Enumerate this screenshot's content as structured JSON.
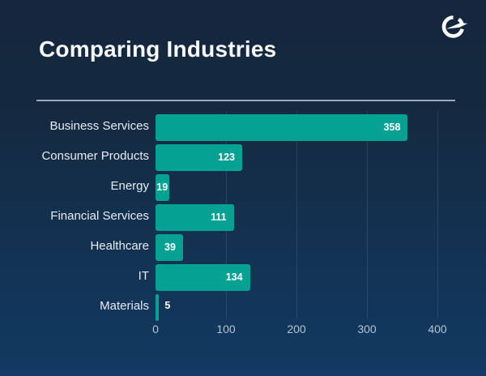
{
  "header": {
    "title": "Comparing Industries",
    "logo_icon": "circular-gauge-logo"
  },
  "chart_data": {
    "type": "bar",
    "orientation": "horizontal",
    "title": "Comparing Industries",
    "categories": [
      "Business Services",
      "Consumer Products",
      "Energy",
      "Financial Services",
      "Healthcare",
      "IT",
      "Materials"
    ],
    "values": [
      358,
      123,
      19,
      111,
      39,
      134,
      5
    ],
    "xlabel": "",
    "ylabel": "",
    "xlim": [
      0,
      400
    ],
    "x_ticks": [
      0,
      100,
      200,
      300,
      400
    ],
    "grid": true,
    "legend": false,
    "bar_color": "#05a294",
    "value_label_color": "#ffffff"
  },
  "colors": {
    "background_top": "#15263e",
    "background_bottom": "#123a63",
    "bar": "#05a294",
    "title_text": "#f8fafd",
    "category_text": "#e8ecf3",
    "axis_text": "#b6c1d1",
    "divider": "#bec7d5"
  }
}
